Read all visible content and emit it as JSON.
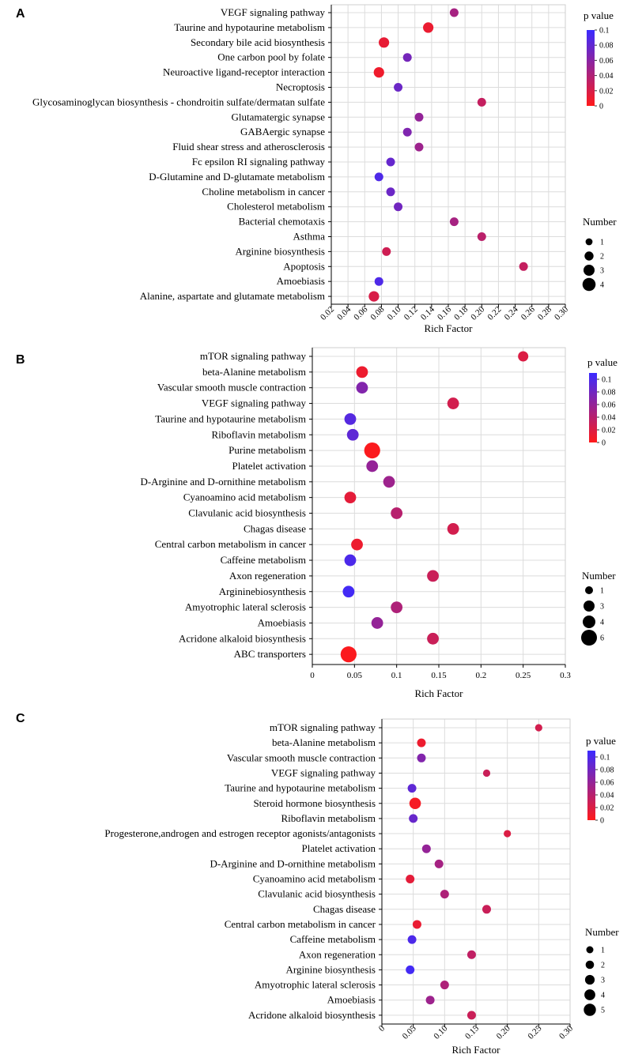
{
  "palette": {
    "low": "#ff1a1a",
    "high": "#3a2bff",
    "grid": "#dcdcdc",
    "axis": "#000000"
  },
  "chart_data": [
    {
      "panel": "A",
      "type": "scatter",
      "xlabel": "Rich Factor",
      "xlim": [
        0.02,
        0.3
      ],
      "xticks": [
        0.02,
        0.04,
        0.06,
        0.08,
        0.1,
        0.12,
        0.14,
        0.16,
        0.18,
        0.2,
        0.22,
        0.24,
        0.26,
        0.28,
        0.3
      ],
      "xtick_labels": [
        "0.02",
        "0.04",
        "0.06",
        "0.08",
        "0.10",
        "0.12",
        "0.14",
        "0.16",
        "0.18",
        "0.20",
        "0.22",
        "0.24",
        "0.26",
        "0.28",
        "0.30"
      ],
      "color_legend": {
        "title": "p value",
        "ticks": [
          0.1,
          0.08,
          0.06,
          0.04,
          0.02,
          0
        ],
        "tick_labels": [
          "0.1",
          "0.08",
          "0.06",
          "0.04",
          "0.02",
          "0"
        ],
        "max": 0.1
      },
      "size_legend": {
        "title": "Number",
        "values": [
          1,
          2,
          3,
          4
        ],
        "labels": [
          "1",
          "2",
          "3",
          "4"
        ]
      },
      "categories": [
        "VEGF signaling pathway",
        "Taurine and hypotaurine metabolism",
        "Secondary bile acid biosynthesis",
        "One carbon pool by folate",
        "Neuroactive ligand-receptor interaction",
        "Necroptosis",
        "Glycosaminoglycan biosynthesis - chondroitin sulfate/dermatan sulfate",
        "Glutamatergic synapse",
        "GABAergic synapse",
        "Fluid shear stress and atherosclerosis",
        "Fc epsilon RI signaling pathway",
        "D-Glutamine and D-glutamate metabolism",
        "Choline metabolism in cancer",
        "Cholesterol metabolism",
        "Bacterial chemotaxis",
        "Asthma",
        "Arginine biosynthesis",
        "Apoptosis",
        "Amoebiasis",
        "Alanine, aspartate and glutamate metabolism"
      ],
      "rich_factor": [
        0.167,
        0.136,
        0.083,
        0.111,
        0.077,
        0.1,
        0.2,
        0.125,
        0.111,
        0.125,
        0.091,
        0.077,
        0.091,
        0.1,
        0.167,
        0.2,
        0.086,
        0.25,
        0.077,
        0.071
      ],
      "number": [
        1,
        2,
        2,
        1,
        2,
        1,
        1,
        1,
        1,
        1,
        1,
        1,
        1,
        1,
        1,
        1,
        1,
        1,
        1,
        2
      ],
      "p_value": [
        0.045,
        0.01,
        0.012,
        0.07,
        0.008,
        0.075,
        0.03,
        0.055,
        0.065,
        0.05,
        0.078,
        0.09,
        0.075,
        0.072,
        0.045,
        0.035,
        0.025,
        0.03,
        0.09,
        0.02
      ]
    },
    {
      "panel": "B",
      "type": "scatter",
      "xlabel": "Rich Factor",
      "xlim": [
        0,
        0.3
      ],
      "xticks": [
        0,
        0.05,
        0.1,
        0.15,
        0.2,
        0.25,
        0.3
      ],
      "xtick_labels": [
        "0",
        "0.05",
        "0.1",
        "0.15",
        "0.2",
        "0.25",
        "0.3"
      ],
      "color_legend": {
        "title": "p value",
        "ticks": [
          0.1,
          0.08,
          0.06,
          0.04,
          0.02,
          0
        ],
        "tick_labels": [
          "0.1",
          "0.08",
          "0.06",
          "0.04",
          "0.02",
          "0"
        ],
        "max": 0.11
      },
      "size_legend": {
        "title": "Number",
        "values": [
          1,
          3,
          4,
          6
        ],
        "labels": [
          "1",
          "3",
          "4",
          "6"
        ]
      },
      "categories": [
        "mTOR signaling pathway",
        "beta-Alanine metabolism",
        "Vascular smooth muscle contraction",
        "VEGF signaling pathway",
        "Taurine and hypotaurine metabolism",
        "Riboflavin metabolism",
        "Purine metabolism",
        "Platelet activation",
        "D-Arginine and D-ornithine metabolism",
        "Cyanoamino acid metabolism",
        "Clavulanic acid biosynthesis",
        "Chagas disease",
        "Central carbon metabolism in cancer",
        "Caffeine metabolism",
        "Axon regeneration",
        "Argininebiosynthesis",
        "Amyotrophic lateral sclerosis",
        "Amoebiasis",
        "Acridone alkaloid biosynthesis",
        "ABC transporters"
      ],
      "rich_factor": [
        0.25,
        0.059,
        0.059,
        0.167,
        0.045,
        0.048,
        0.071,
        0.071,
        0.091,
        0.045,
        0.1,
        0.167,
        0.053,
        0.045,
        0.143,
        0.043,
        0.1,
        0.077,
        0.143,
        0.043
      ],
      "number": [
        2,
        3,
        3,
        3,
        3,
        3,
        6,
        3,
        3,
        3,
        3,
        3,
        3,
        3,
        3,
        3,
        3,
        3,
        3,
        6
      ],
      "p_value": [
        0.02,
        0.01,
        0.07,
        0.025,
        0.095,
        0.09,
        0.002,
        0.06,
        0.055,
        0.015,
        0.04,
        0.025,
        0.01,
        0.1,
        0.03,
        0.105,
        0.045,
        0.06,
        0.03,
        0.002
      ]
    },
    {
      "panel": "C",
      "type": "scatter",
      "xlabel": "Rich Factor",
      "xlim": [
        0,
        0.3
      ],
      "xticks": [
        0,
        0.05,
        0.1,
        0.15,
        0.2,
        0.25,
        0.3
      ],
      "xtick_labels": [
        "0",
        "0.05",
        "0.10",
        "0.15",
        "0.20",
        "0.25",
        "0.30"
      ],
      "color_legend": {
        "title": "p value",
        "ticks": [
          0.1,
          0.08,
          0.06,
          0.04,
          0.02,
          0
        ],
        "tick_labels": [
          "0.1",
          "0.08",
          "0.06",
          "0.04",
          "0.02",
          "0"
        ],
        "max": 0.11
      },
      "size_legend": {
        "title": "Number",
        "values": [
          1,
          2,
          3,
          4,
          5
        ],
        "labels": [
          "1",
          "2",
          "3",
          "4",
          "5"
        ]
      },
      "categories": [
        "mTOR signaling pathway",
        "beta-Alanine metabolism",
        "Vascular smooth muscle contraction",
        "VEGF signaling pathway",
        "Taurine and hypotaurine metabolism",
        "Steroid hormone biosynthesis",
        "Riboflavin metabolism",
        "Progesterone,androgen and estrogen receptor agonists/antagonists",
        "Platelet activation",
        "D-Arginine and D-ornithine metabolism",
        "Cyanoamino acid metabolism",
        "Clavulanic acid biosynthesis",
        "Chagas disease",
        "Central carbon metabolism in cancer",
        "Caffeine metabolism",
        "Axon regeneration",
        "Arginine biosynthesis",
        "Amyotrophic lateral sclerosis",
        "Amoebiasis",
        "Acridone alkaloid biosynthesis"
      ],
      "rich_factor": [
        0.25,
        0.063,
        0.063,
        0.167,
        0.048,
        0.053,
        0.05,
        0.2,
        0.071,
        0.091,
        0.045,
        0.1,
        0.167,
        0.056,
        0.048,
        0.143,
        0.045,
        0.1,
        0.077,
        0.143
      ],
      "number": [
        1,
        2,
        2,
        1,
        2,
        4,
        2,
        1,
        2,
        2,
        2,
        2,
        2,
        2,
        2,
        2,
        2,
        2,
        2,
        2
      ],
      "p_value": [
        0.025,
        0.01,
        0.07,
        0.03,
        0.09,
        0.005,
        0.085,
        0.02,
        0.06,
        0.05,
        0.015,
        0.045,
        0.03,
        0.012,
        0.1,
        0.035,
        0.105,
        0.045,
        0.055,
        0.03
      ]
    }
  ]
}
